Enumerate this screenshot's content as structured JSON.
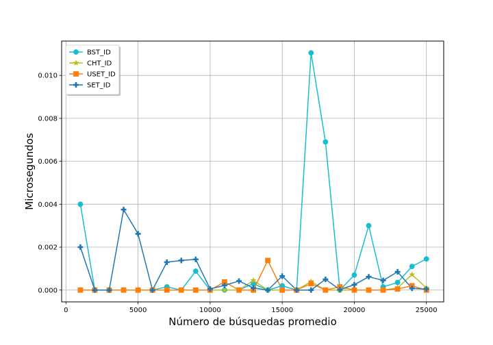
{
  "chart_data": {
    "type": "line",
    "title": "",
    "xlabel": "Número de búsquedas promedio",
    "ylabel": "Microsegundos",
    "xlim": [
      -300,
      26200
    ],
    "ylim": [
      -0.00055,
      0.0116
    ],
    "xticks": [
      0,
      5000,
      10000,
      15000,
      20000,
      25000
    ],
    "yticks": [
      0.0,
      0.002,
      0.004,
      0.006,
      0.008,
      0.01
    ],
    "xtick_labels": [
      "0",
      "5000",
      "10000",
      "15000",
      "20000",
      "25000"
    ],
    "ytick_labels": [
      "0.000",
      "0.002",
      "0.004",
      "0.006",
      "0.008",
      "0.010"
    ],
    "grid": true,
    "legend_position": "top-left",
    "x": [
      1000,
      2000,
      3000,
      4000,
      5000,
      6000,
      7000,
      8000,
      9000,
      10000,
      11000,
      12000,
      13000,
      14000,
      15000,
      16000,
      17000,
      18000,
      19000,
      20000,
      21000,
      22000,
      23000,
      24000,
      25000
    ],
    "series": [
      {
        "name": "BST_ID",
        "color": "#17becf",
        "marker": "circle",
        "values": [
          0.004,
          0.0,
          0.0,
          0.0,
          0.0,
          0.0,
          0.00015,
          0.0,
          0.00088,
          0.0,
          0.0,
          0.0,
          0.0003,
          0.0,
          0.0002,
          0.0,
          0.01105,
          0.0069,
          0.0,
          0.0007,
          0.003,
          0.00015,
          0.00035,
          0.0011,
          0.00145
        ]
      },
      {
        "name": "CHT_ID",
        "color": "#bcbd22",
        "marker": "star",
        "values": [
          0.0,
          0.0,
          0.0,
          0.0,
          0.0,
          0.0,
          0.0,
          0.0,
          0.0,
          0.0,
          0.0,
          0.0,
          0.00045,
          0.0,
          0.0,
          0.0,
          0.0004,
          0.0,
          0.0,
          0.0,
          0.0,
          0.0,
          0.0001,
          0.00072,
          0.0001
        ]
      },
      {
        "name": "USET_ID",
        "color": "#ff7f0e",
        "marker": "square",
        "values": [
          0.0,
          0.0,
          0.0,
          0.0,
          0.0,
          0.0,
          0.0,
          0.0,
          0.0,
          0.0,
          0.00038,
          0.0,
          0.0,
          0.00138,
          0.0,
          0.0,
          0.0003,
          0.0,
          0.00015,
          0.0,
          0.0,
          0.0,
          5e-05,
          0.0002,
          0.0
        ]
      },
      {
        "name": "SET_ID",
        "color": "#1f77b4",
        "marker": "plus",
        "values": [
          0.002,
          0.0,
          0.0,
          0.00375,
          0.00262,
          0.0,
          0.0013,
          0.00138,
          0.00143,
          5e-05,
          0.00022,
          0.00042,
          0.0001,
          0.0,
          0.00065,
          0.0,
          0.0,
          0.0005,
          2e-05,
          0.00025,
          0.00062,
          0.00045,
          0.00085,
          8e-05,
          5e-05
        ]
      }
    ]
  }
}
